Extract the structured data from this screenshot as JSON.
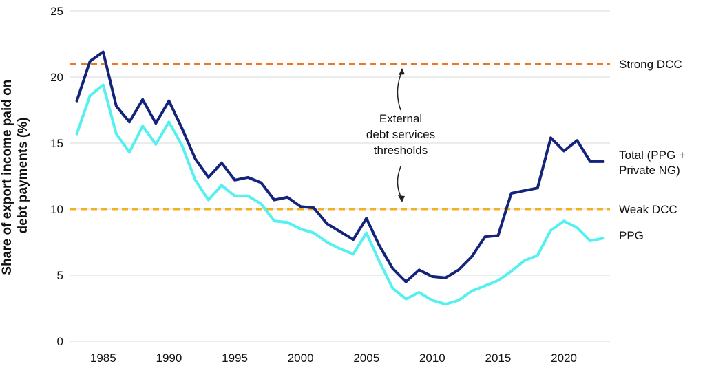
{
  "chart_data": {
    "type": "line",
    "ylabel_lines": [
      "Share of export income paid on",
      "debt payments (%)"
    ],
    "ylim": [
      0,
      25
    ],
    "yticks": [
      0,
      5,
      10,
      15,
      20,
      25
    ],
    "xlim": [
      1982.5,
      2023.5
    ],
    "xticks": [
      1985,
      1990,
      1995,
      2000,
      2005,
      2010,
      2015,
      2020
    ],
    "grid": true,
    "x": [
      1983,
      1984,
      1985,
      1986,
      1987,
      1988,
      1989,
      1990,
      1991,
      1992,
      1993,
      1994,
      1995,
      1996,
      1997,
      1998,
      1999,
      2000,
      2001,
      2002,
      2003,
      2004,
      2005,
      2006,
      2007,
      2008,
      2009,
      2010,
      2011,
      2012,
      2013,
      2014,
      2015,
      2016,
      2017,
      2018,
      2019,
      2020,
      2021,
      2022,
      2023
    ],
    "series": [
      {
        "name_lines": [
          "Total (PPG +",
          "Private NG)"
        ],
        "color": "#13247a",
        "values": [
          18.2,
          21.2,
          21.9,
          17.8,
          16.6,
          18.3,
          16.5,
          18.2,
          16.1,
          13.8,
          12.4,
          13.5,
          12.2,
          12.4,
          12.0,
          10.7,
          10.9,
          10.2,
          10.1,
          8.9,
          8.3,
          7.7,
          9.3,
          7.2,
          5.5,
          4.5,
          5.4,
          4.9,
          4.8,
          5.4,
          6.4,
          7.9,
          8.0,
          11.2,
          11.4,
          11.6,
          15.4,
          14.4,
          15.2,
          13.6,
          13.6
        ]
      },
      {
        "name_lines": [
          "PPG"
        ],
        "color": "#55f0f0",
        "values": [
          15.7,
          18.6,
          19.4,
          15.7,
          14.3,
          16.3,
          14.9,
          16.6,
          14.8,
          12.2,
          10.7,
          11.8,
          11.0,
          11.0,
          10.4,
          9.1,
          9.0,
          8.5,
          8.2,
          7.5,
          7.0,
          6.6,
          8.2,
          6.0,
          4.0,
          3.2,
          3.7,
          3.1,
          2.8,
          3.1,
          3.8,
          4.2,
          4.6,
          5.3,
          6.1,
          6.5,
          8.4,
          9.1,
          8.6,
          7.6,
          7.8
        ]
      }
    ],
    "thresholds": [
      {
        "name": "Strong DCC",
        "value": 21,
        "color": "#ee7722"
      },
      {
        "name": "Weak DCC",
        "value": 10,
        "color": "#f0b020"
      }
    ],
    "annotation_lines": [
      "External",
      "debt services",
      "thresholds"
    ]
  }
}
